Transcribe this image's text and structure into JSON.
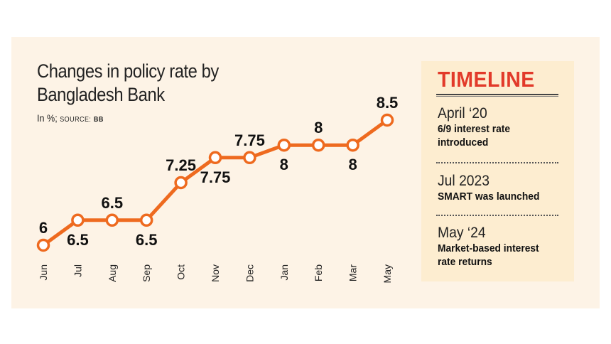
{
  "chart_data": {
    "type": "line",
    "title_lines": [
      "Changes in policy rate by",
      "Bangladesh Bank"
    ],
    "subtitle_unit": "In %;",
    "subtitle_source_label": "SOURCE:",
    "subtitle_source": "BB",
    "categories": [
      "Jun",
      "Jul",
      "Aug",
      "Sep",
      "Oct",
      "Nov",
      "Dec",
      "Jan",
      "Feb",
      "Mar",
      "May"
    ],
    "series": [
      {
        "values": [
          6,
          6.5,
          6.5,
          6.5,
          7.25,
          7.75,
          7.75,
          8,
          8,
          8,
          8.5
        ]
      }
    ],
    "data_labels": [
      {
        "text": "6",
        "position": "above"
      },
      {
        "text": "6.5",
        "position": "below"
      },
      {
        "text": "6.5",
        "position": "above"
      },
      {
        "text": "6.5",
        "position": "below"
      },
      {
        "text": "7.25",
        "position": "above"
      },
      {
        "text": "7.75",
        "position": "below"
      },
      {
        "text": "7.75",
        "position": "above"
      },
      {
        "text": "8",
        "position": "below"
      },
      {
        "text": "8",
        "position": "above"
      },
      {
        "text": "8",
        "position": "below"
      },
      {
        "text": "8.5",
        "position": "above"
      }
    ],
    "line_color": "#ee6a1f",
    "grid": false
  },
  "timeline": {
    "title": "TIMELINE",
    "title_color": "#e23a2a",
    "items": [
      {
        "date": "April ‘20",
        "text_lines": [
          "6/9 interest rate",
          "introduced"
        ]
      },
      {
        "date": "Jul 2023",
        "text_lines": [
          "SMART was launched"
        ]
      },
      {
        "date": "May ‘24",
        "text_lines": [
          "Market-based interest",
          "rate returns"
        ]
      }
    ]
  },
  "colors": {
    "background": "#fdf3e6",
    "timeline_panel": "#fdedd0",
    "accent": "#ee6a1f"
  }
}
